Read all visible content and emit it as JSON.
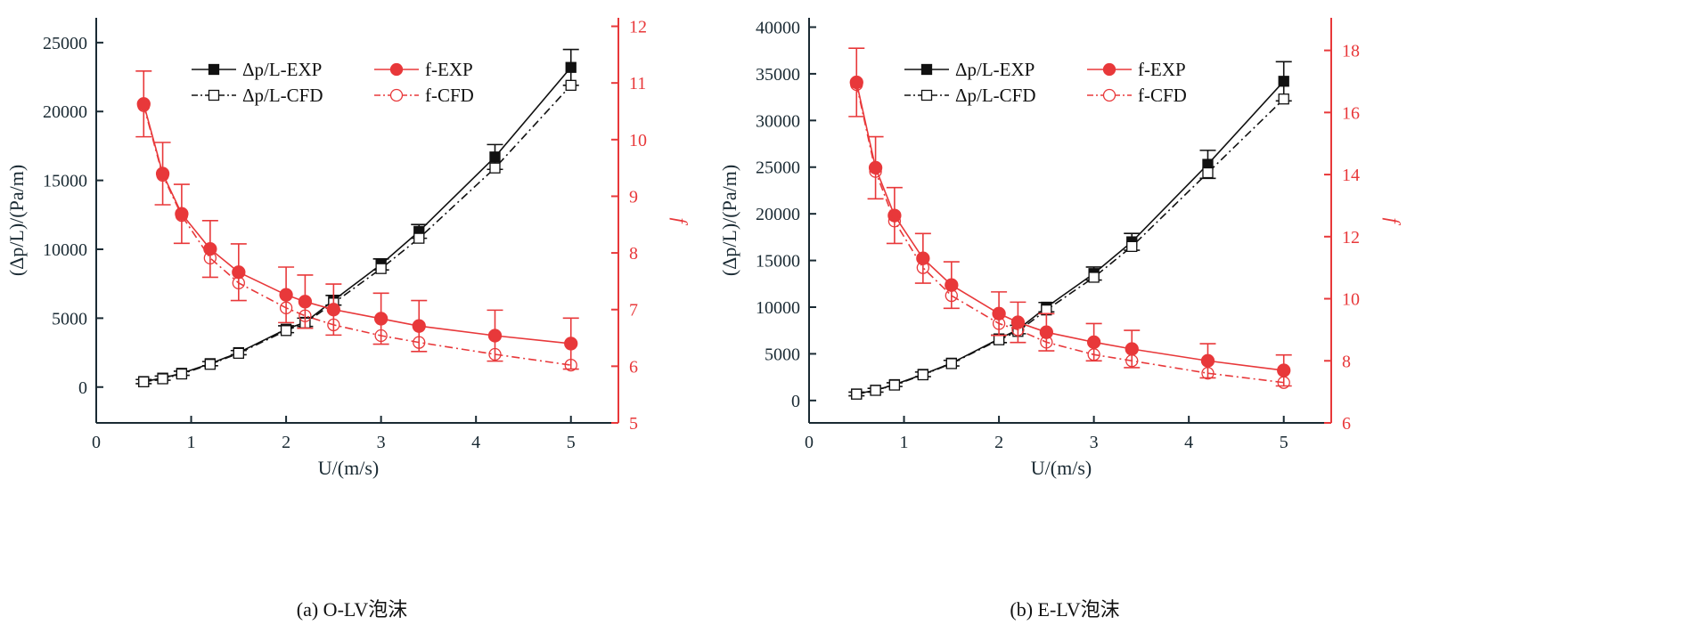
{
  "chart_data": [
    {
      "type": "line",
      "caption": "(a) O-LV泡沫",
      "xlabel": "U/(m/s)",
      "ylabel": "(Δp/L)/(Pa/m)",
      "y2label": "f",
      "xlim": [
        0,
        5.5
      ],
      "ylim": [
        -2600,
        26800
      ],
      "y2lim": [
        5,
        12.15
      ],
      "xticks": [
        0,
        1,
        2,
        3,
        4,
        5
      ],
      "yticks": [
        0,
        5000,
        10000,
        15000,
        20000,
        25000
      ],
      "y2ticks": [
        5,
        6,
        7,
        8,
        9,
        10,
        11,
        12
      ],
      "grid": false,
      "legend": "top",
      "x": [
        0.5,
        0.7,
        0.9,
        1.2,
        1.5,
        2.0,
        2.2,
        2.5,
        3.0,
        3.4,
        4.2,
        5.0
      ],
      "series": [
        {
          "name": "Δp/L-EXP",
          "axis": "left",
          "style": "solid-filled-square",
          "color": "#111111",
          "values": [
            400,
            650,
            1000,
            1700,
            2500,
            4200,
            4700,
            6300,
            8900,
            11300,
            16700,
            23200
          ],
          "error": [
            150,
            150,
            150,
            150,
            150,
            250,
            300,
            350,
            400,
            500,
            900,
            1300
          ]
        },
        {
          "name": "Δp/L-CFD",
          "axis": "left",
          "style": "dashdot-open-square",
          "color": "#111111",
          "values": [
            380,
            600,
            950,
            1650,
            2450,
            4100,
            4650,
            6100,
            8600,
            10800,
            15900,
            21900
          ]
        },
        {
          "name": "f-EXP",
          "axis": "right",
          "style": "solid-filled-circle",
          "color": "#e8383a",
          "values": [
            10.63,
            9.4,
            8.69,
            8.07,
            7.66,
            7.26,
            7.14,
            7.0,
            6.84,
            6.71,
            6.54,
            6.4
          ],
          "error": [
            0.58,
            0.55,
            0.52,
            0.5,
            0.5,
            0.49,
            0.47,
            0.45,
            0.45,
            0.45,
            0.45,
            0.45
          ]
        },
        {
          "name": "f-CFD",
          "axis": "right",
          "style": "dashdot-open-circle",
          "color": "#e8383a",
          "values": [
            10.6,
            9.37,
            8.66,
            7.91,
            7.47,
            7.03,
            6.89,
            6.73,
            6.54,
            6.42,
            6.21,
            6.02
          ]
        }
      ]
    },
    {
      "type": "line",
      "caption": "(b) E-LV泡沫",
      "xlabel": "U/(m/s)",
      "ylabel": "(Δp/L)/(Pa/m)",
      "y2label": "f",
      "xlim": [
        0,
        5.5
      ],
      "ylim": [
        -2400,
        41000
      ],
      "y2lim": [
        6,
        19.05
      ],
      "xticks": [
        0,
        1,
        2,
        3,
        4,
        5
      ],
      "yticks": [
        0,
        5000,
        10000,
        15000,
        20000,
        25000,
        30000,
        35000,
        40000
      ],
      "y2ticks": [
        6,
        8,
        10,
        12,
        14,
        16,
        18
      ],
      "grid": false,
      "legend": "top",
      "x": [
        0.5,
        0.7,
        0.9,
        1.2,
        1.5,
        2.0,
        2.2,
        2.5,
        3.0,
        3.4,
        4.2,
        5.0
      ],
      "series": [
        {
          "name": "Δp/L-EXP",
          "axis": "left",
          "style": "solid-filled-square",
          "color": "#111111",
          "values": [
            700,
            1100,
            1700,
            2800,
            4000,
            6600,
            7600,
            10000,
            13600,
            17000,
            25300,
            34200
          ],
          "error": [
            200,
            200,
            200,
            250,
            300,
            400,
            450,
            500,
            700,
            900,
            1500,
            2100
          ]
        },
        {
          "name": "Δp/L-CFD",
          "axis": "left",
          "style": "dashdot-open-square",
          "color": "#111111",
          "values": [
            680,
            1080,
            1650,
            2750,
            3950,
            6500,
            7400,
            9700,
            13200,
            16500,
            24400,
            32300
          ]
        },
        {
          "name": "f-EXP",
          "axis": "right",
          "style": "solid-filled-circle",
          "color": "#e8383a",
          "values": [
            16.97,
            14.22,
            12.68,
            11.3,
            10.44,
            9.52,
            9.24,
            8.92,
            8.6,
            8.38,
            8.0,
            7.69
          ],
          "error": [
            1.1,
            1.0,
            0.9,
            0.8,
            0.75,
            0.7,
            0.65,
            0.6,
            0.6,
            0.6,
            0.55,
            0.5
          ]
        },
        {
          "name": "f-CFD",
          "axis": "right",
          "style": "dashdot-open-circle",
          "color": "#e8383a",
          "values": [
            16.9,
            14.1,
            12.5,
            11.0,
            10.1,
            9.2,
            9.0,
            8.6,
            8.2,
            8.0,
            7.6,
            7.3
          ]
        }
      ]
    }
  ]
}
